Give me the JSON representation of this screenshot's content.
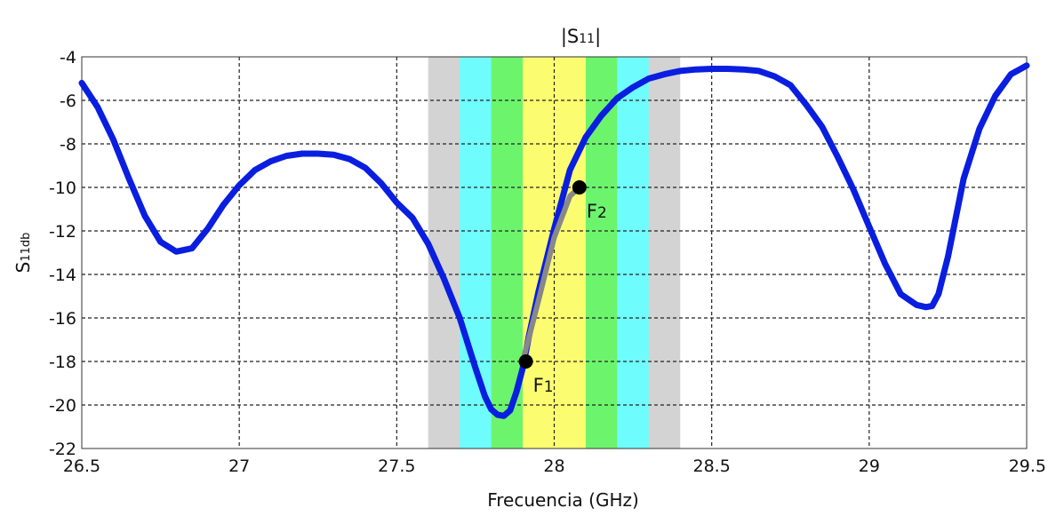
{
  "chart_data": {
    "type": "line",
    "title_prefix": "|S",
    "title_sub": "11",
    "title_suffix": "|",
    "xlabel": "Frecuencia (GHz)",
    "ylabel_main": "S",
    "ylabel_sub": "11db",
    "xlim": [
      26.5,
      29.5
    ],
    "ylim": [
      -22,
      -4
    ],
    "xticks": [
      26.5,
      27,
      27.5,
      28,
      28.5,
      29,
      29.5
    ],
    "xtick_labels": [
      "26.5",
      "27",
      "27.5",
      "28",
      "28.5",
      "29",
      "29.5"
    ],
    "yticks": [
      -4,
      -6,
      -8,
      -10,
      -12,
      -14,
      -16,
      -18,
      -20,
      -22
    ],
    "ytick_labels": [
      "-4",
      "-6",
      "-8",
      "-10",
      "-12",
      "-14",
      "-16",
      "-18",
      "-20",
      "-22"
    ],
    "grid": true,
    "bands": [
      {
        "from": 27.6,
        "to": 28.4,
        "color": "#d3d3d3"
      },
      {
        "from": 27.7,
        "to": 28.3,
        "color": "#6ffcfc"
      },
      {
        "from": 27.8,
        "to": 28.2,
        "color": "#6df46d"
      },
      {
        "from": 27.9,
        "to": 28.1,
        "color": "#fcfc70"
      }
    ],
    "series": [
      {
        "color": "#0a1ee0",
        "x": [
          26.5,
          26.55,
          26.6,
          26.65,
          26.7,
          26.75,
          26.8,
          26.85,
          26.9,
          26.95,
          27.0,
          27.05,
          27.1,
          27.15,
          27.2,
          27.25,
          27.3,
          27.35,
          27.4,
          27.45,
          27.5,
          27.55,
          27.6,
          27.65,
          27.7,
          27.75,
          27.78,
          27.8,
          27.82,
          27.84,
          27.86,
          27.88,
          27.9,
          27.92,
          27.95,
          28.0,
          28.05,
          28.1,
          28.15,
          28.2,
          28.25,
          28.3,
          28.35,
          28.4,
          28.45,
          28.5,
          28.55,
          28.6,
          28.65,
          28.7,
          28.75,
          28.8,
          28.85,
          28.9,
          28.95,
          29.0,
          29.05,
          29.1,
          29.15,
          29.18,
          29.2,
          29.22,
          29.25,
          29.3,
          29.35,
          29.4,
          29.45,
          29.5
        ],
        "y": [
          -5.2,
          -6.3,
          -7.8,
          -9.6,
          -11.3,
          -12.5,
          -12.95,
          -12.8,
          -11.9,
          -10.8,
          -9.9,
          -9.2,
          -8.8,
          -8.55,
          -8.45,
          -8.45,
          -8.5,
          -8.7,
          -9.1,
          -9.8,
          -10.7,
          -11.4,
          -12.6,
          -14.2,
          -16.0,
          -18.3,
          -19.6,
          -20.2,
          -20.45,
          -20.5,
          -20.25,
          -19.4,
          -18.3,
          -16.8,
          -14.8,
          -11.9,
          -9.2,
          -7.7,
          -6.7,
          -5.9,
          -5.4,
          -5.0,
          -4.8,
          -4.65,
          -4.58,
          -4.55,
          -4.55,
          -4.58,
          -4.65,
          -4.9,
          -5.3,
          -6.2,
          -7.2,
          -8.6,
          -10.1,
          -11.8,
          -13.5,
          -14.9,
          -15.4,
          -15.5,
          -15.45,
          -14.9,
          -13.2,
          -9.6,
          -7.3,
          -5.8,
          -4.8,
          -4.4
        ]
      },
      {
        "color": "#888888",
        "x": [
          27.9,
          27.95,
          28.0,
          28.05,
          28.08
        ],
        "y": [
          -18.0,
          -15.2,
          -12.3,
          -10.4,
          -10.0
        ]
      }
    ],
    "markers": [
      {
        "x": 27.91,
        "y": -18.0,
        "label_main": "F",
        "label_sub": "1"
      },
      {
        "x": 28.08,
        "y": -10.0,
        "label_main": "F",
        "label_sub": "2"
      }
    ]
  }
}
